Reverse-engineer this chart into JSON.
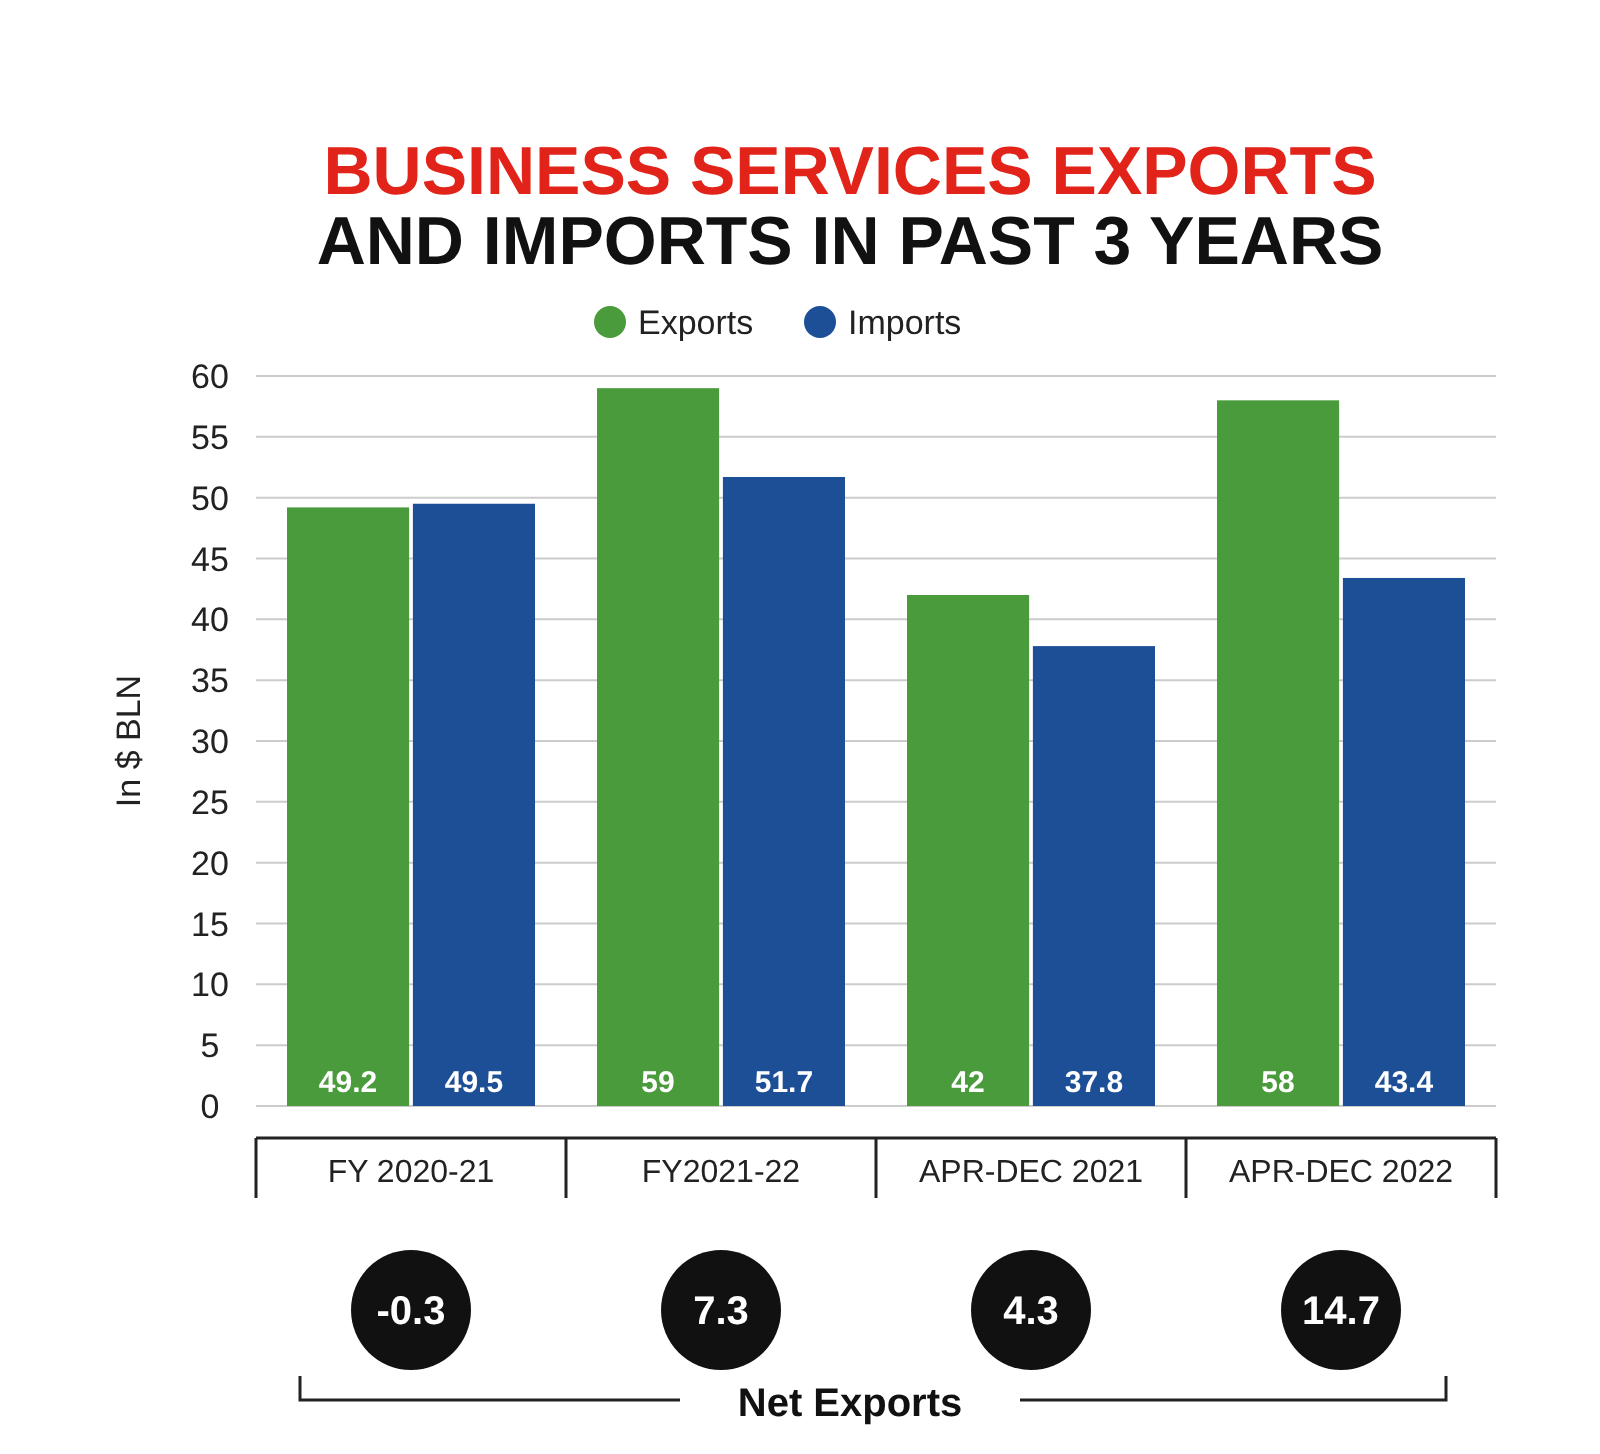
{
  "chart_data": {
    "type": "bar",
    "title": "BUSINESS SERVICES EXPORTS",
    "subtitle": "AND IMPORTS IN PAST 3 YEARS",
    "ylabel": "In $ BLN",
    "categories": [
      "FY 2020-21",
      "FY2021-22",
      "APR-DEC 2021",
      "APR-DEC 2022"
    ],
    "series": [
      {
        "name": "Exports",
        "color": "#4a9b3c",
        "values": [
          49.2,
          59,
          42,
          58
        ]
      },
      {
        "name": "Imports",
        "color": "#1d4f96",
        "values": [
          49.5,
          51.7,
          37.8,
          43.4
        ]
      }
    ],
    "ylim": [
      0,
      60
    ],
    "yticks": [
      0,
      5,
      10,
      15,
      20,
      25,
      30,
      35,
      40,
      45,
      50,
      55,
      60
    ],
    "grid": "y",
    "legend": "top",
    "data_labels": true,
    "annotations": [
      "-0.3",
      "7.3",
      "4.3",
      "14.7",
      "Net Exports"
    ]
  }
}
